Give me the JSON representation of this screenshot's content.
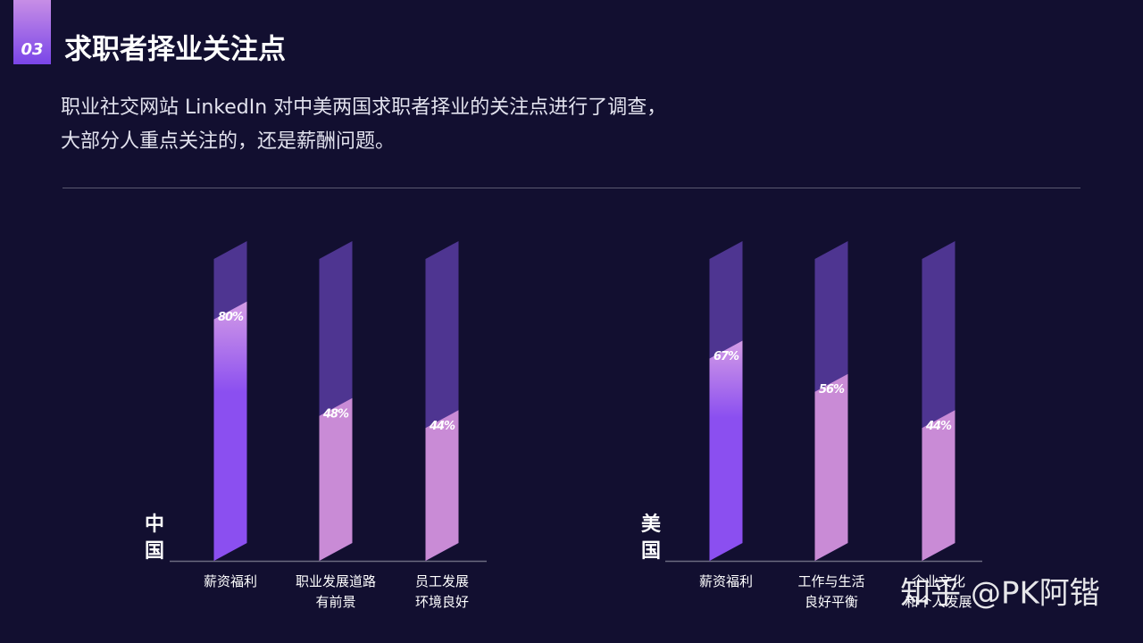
{
  "header": {
    "number": "03",
    "title": "求职者择业关注点",
    "description": [
      "职业社交网站 LinkedIn 对中美两国求职者择业的关注点进行了调查，",
      "大部分人重点关注的，还是薪酬问题。"
    ]
  },
  "chart_data": [
    {
      "type": "bar",
      "name": "中国",
      "categories": [
        "薪资福利",
        "职业发展道路\n有前景",
        "员工发展\n环境良好"
      ],
      "values": [
        80,
        48,
        44
      ],
      "value_labels": [
        "80%",
        "48%",
        "44%"
      ],
      "colors": [
        "#8b4ff0",
        "#c98bd6",
        "#c98bd6"
      ],
      "ylim": [
        0,
        100
      ]
    },
    {
      "type": "bar",
      "name": "美国",
      "categories": [
        "薪资福利",
        "工作与生活\n良好平衡",
        "企业文化\n和个人发展"
      ],
      "values": [
        67,
        56,
        44
      ],
      "value_labels": [
        "67%",
        "56%",
        "44%"
      ],
      "colors": [
        "#8b4ff0",
        "#c98bd6",
        "#c98bd6"
      ],
      "ylim": [
        0,
        100
      ]
    }
  ],
  "watermark": "知乎 @PK阿锴"
}
